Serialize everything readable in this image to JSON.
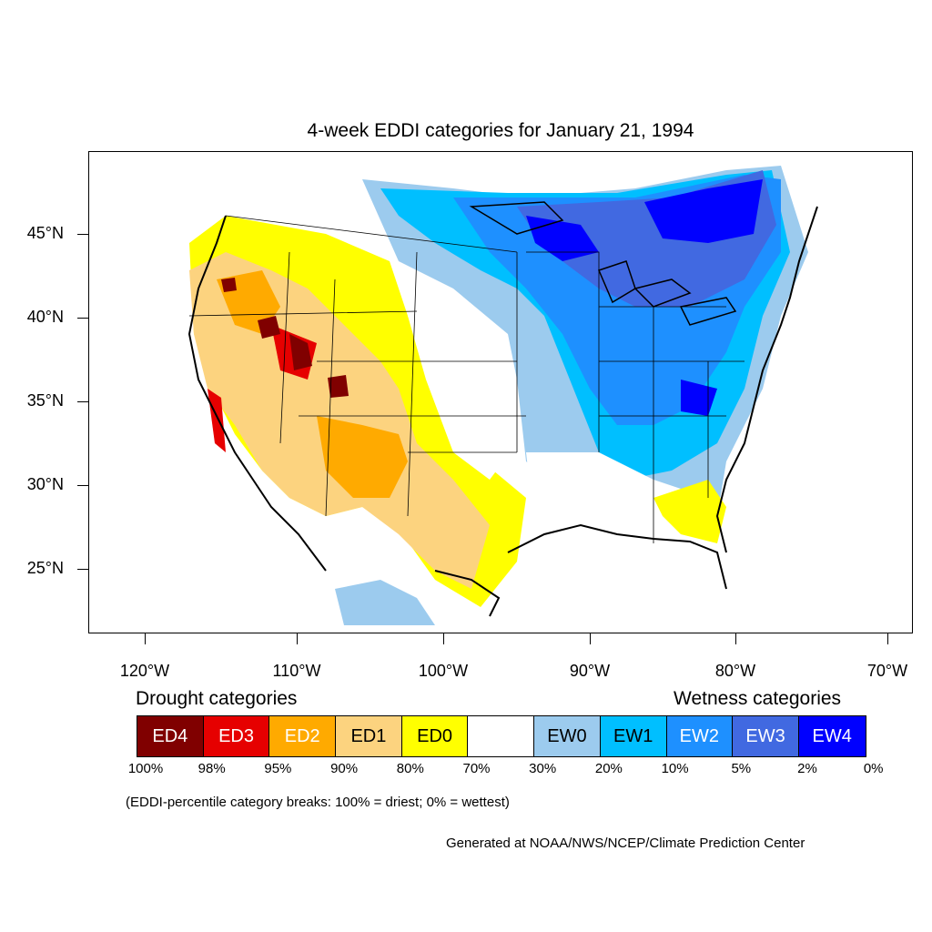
{
  "title": "4-week EDDI categories for January 21, 1994",
  "lat_labels": [
    "45°N",
    "40°N",
    "35°N",
    "30°N",
    "25°N"
  ],
  "lon_labels": [
    "120°W",
    "110°W",
    "100°W",
    "90°W",
    "80°W",
    "70°W"
  ],
  "legend": {
    "drought_heading": "Drought categories",
    "wetness_heading": "Wetness categories",
    "categories": [
      {
        "label": "ED4",
        "color": "#800000",
        "text_color": "#ffffff"
      },
      {
        "label": "ED3",
        "color": "#e60000",
        "text_color": "#ffffff"
      },
      {
        "label": "ED2",
        "color": "#ffaa00",
        "text_color": "#ffffff"
      },
      {
        "label": "ED1",
        "color": "#fcd37f",
        "text_color": "#000000"
      },
      {
        "label": "ED0",
        "color": "#ffff00",
        "text_color": "#000000"
      },
      {
        "label": "",
        "color": "#ffffff",
        "text_color": "#000000"
      },
      {
        "label": "EW0",
        "color": "#9ccbee",
        "text_color": "#000000"
      },
      {
        "label": "EW1",
        "color": "#00bfff",
        "text_color": "#000000"
      },
      {
        "label": "EW2",
        "color": "#1e90ff",
        "text_color": "#ffffff"
      },
      {
        "label": "EW3",
        "color": "#4169e1",
        "text_color": "#ffffff"
      },
      {
        "label": "EW4",
        "color": "#0000ff",
        "text_color": "#ffffff"
      }
    ],
    "breaks": [
      "100%",
      "98%",
      "95%",
      "90%",
      "80%",
      "70%",
      "30%",
      "20%",
      "10%",
      "5%",
      "2%",
      "0%"
    ]
  },
  "note": "(EDDI-percentile category breaks: 100% = driest; 0% = wettest)",
  "credit": "Generated at NOAA/NWS/NCEP/Climate Prediction Center"
}
